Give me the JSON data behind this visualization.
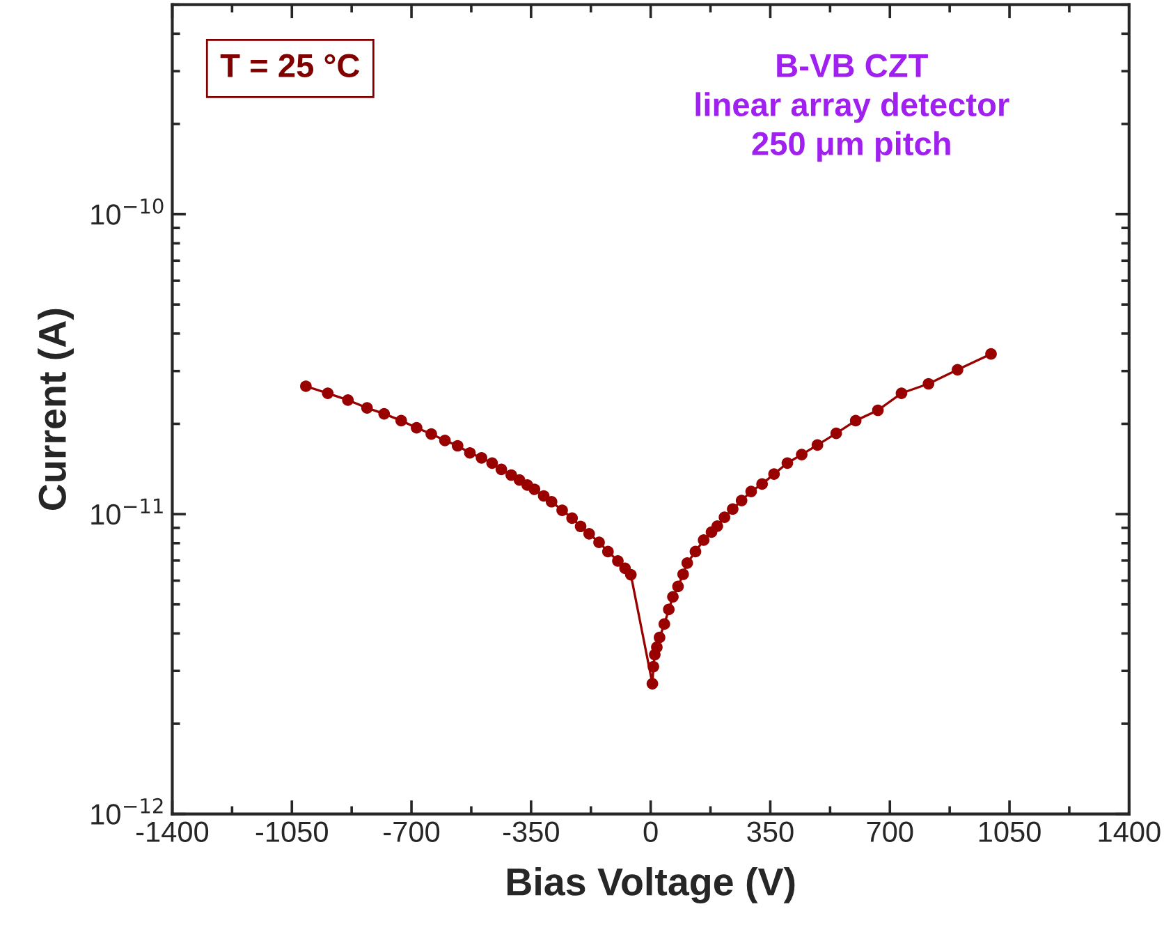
{
  "chart_data": {
    "type": "line",
    "xlabel": "Bias Voltage (V)",
    "ylabel": "Current (A)",
    "log": "y",
    "grid": false,
    "marker": "circle",
    "line_style": "solid",
    "xlim": [
      -1400,
      1400
    ],
    "xticks": [
      -1400,
      -1050,
      -700,
      -350,
      0,
      350,
      700,
      1050,
      1400
    ],
    "ylim": [
      1e-12,
      5e-10
    ],
    "yticks": [
      {
        "value": 1e-12,
        "label": "10$^{−12}$"
      },
      {
        "value": 1e-11,
        "label": "10$^{−11}$"
      },
      {
        "value": 1e-10,
        "label": "10$^{−10}$"
      }
    ],
    "annotations": [
      "T = 25 °C",
      "B-VB CZT\nlinear array detector\n250 μm pitch"
    ],
    "series": [
      {
        "color": "#990000",
        "x": [
          -1009,
          -945,
          -886,
          -830,
          -780,
          -730,
          -685,
          -642,
          -602,
          -565,
          -529,
          -495,
          -464,
          -437,
          -408,
          -384,
          -361,
          -340,
          -313,
          -290,
          -259,
          -230,
          -205,
          -180,
          -151,
          -125,
          -96,
          -75,
          -58,
          5,
          8,
          12,
          18,
          26,
          40,
          53,
          65,
          80,
          95,
          107,
          131,
          155,
          178,
          195,
          216,
          240,
          266,
          294,
          326,
          361,
          400,
          442,
          488,
          543,
          600,
          665,
          734,
          813,
          898,
          996
        ],
        "values": [
          2.67e-11,
          2.53e-11,
          2.4e-11,
          2.26e-11,
          2.16e-11,
          2.05e-11,
          1.94e-11,
          1.85e-11,
          1.76e-11,
          1.69e-11,
          1.6e-11,
          1.54e-11,
          1.48e-11,
          1.41e-11,
          1.35e-11,
          1.3e-11,
          1.25e-11,
          1.21e-11,
          1.15e-11,
          1.1e-11,
          1.03e-11,
          9.7e-12,
          9.1e-12,
          8.6e-12,
          8.05e-12,
          7.5e-12,
          6.98e-12,
          6.6e-12,
          6.28e-12,
          2.72e-12,
          3.1e-12,
          3.4e-12,
          3.6e-12,
          3.88e-12,
          4.3e-12,
          4.81e-12,
          5.3e-12,
          5.74e-12,
          6.3e-12,
          6.87e-12,
          7.5e-12,
          8.19e-12,
          8.71e-12,
          9.12e-12,
          9.76e-12,
          1.04e-11,
          1.11e-11,
          1.19e-11,
          1.26e-11,
          1.36e-11,
          1.48e-11,
          1.58e-11,
          1.7e-11,
          1.86e-11,
          2.05e-11,
          2.22e-11,
          2.53e-11,
          2.72e-11,
          3.03e-11,
          3.42e-11
        ]
      }
    ]
  }
}
